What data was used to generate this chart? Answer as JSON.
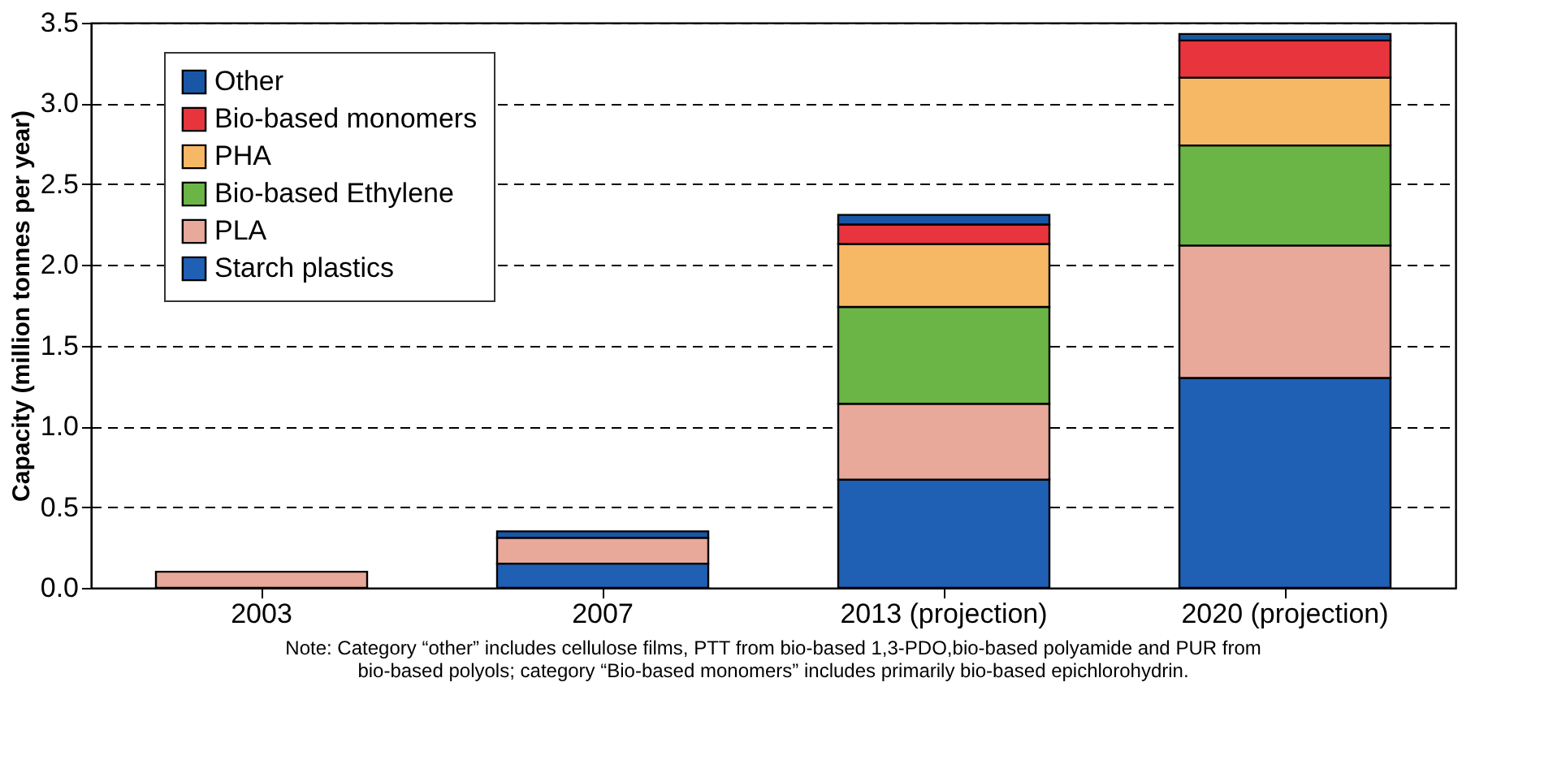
{
  "chart_data": {
    "type": "bar",
    "stacked": true,
    "ylabel": "Capacity (million tonnes per year)",
    "categories": [
      "2003",
      "2007",
      "2013 (projection)",
      "2020 (projection)"
    ],
    "series": [
      {
        "name": "Starch plastics",
        "color": "#1f5fb4",
        "values": [
          null,
          0.15,
          0.67,
          1.3
        ]
      },
      {
        "name": "PLA",
        "color": "#e8a89a",
        "values": [
          0.1,
          0.16,
          0.47,
          0.82
        ]
      },
      {
        "name": "Bio-based Ethylene",
        "color": "#6ab545",
        "values": [
          null,
          null,
          0.6,
          0.62
        ]
      },
      {
        "name": "PHA",
        "color": "#f7b866",
        "values": [
          null,
          null,
          0.39,
          0.42
        ]
      },
      {
        "name": "Bio-based monomers",
        "color": "#e8343c",
        "values": [
          null,
          null,
          0.12,
          0.23
        ]
      },
      {
        "name": "Other",
        "color": "#1a56a6",
        "values": [
          null,
          0.04,
          0.06,
          0.04
        ]
      }
    ],
    "ylim": [
      0,
      3.5
    ],
    "yticks": [
      {
        "value": 0,
        "label": "0.0"
      },
      {
        "value": 0.5,
        "label": "0.5"
      },
      {
        "value": 1,
        "label": "1.0"
      },
      {
        "value": 1.5,
        "label": "1.5"
      },
      {
        "value": 2,
        "label": "2.0"
      },
      {
        "value": 2.5,
        "label": "2.5"
      },
      {
        "value": 3,
        "label": "3.0"
      },
      {
        "value": 3.5,
        "label": "3.5"
      }
    ],
    "grid": "y",
    "legend": "top left",
    "annotations": [
      "Note: Category “other” includes cellulose films, PTT from bio-based 1,3-PDO,bio-based polyamide and PUR from bio-based polyols; category “Bio-based monomers” includes primarily bio-based epichlorohydrin."
    ]
  }
}
